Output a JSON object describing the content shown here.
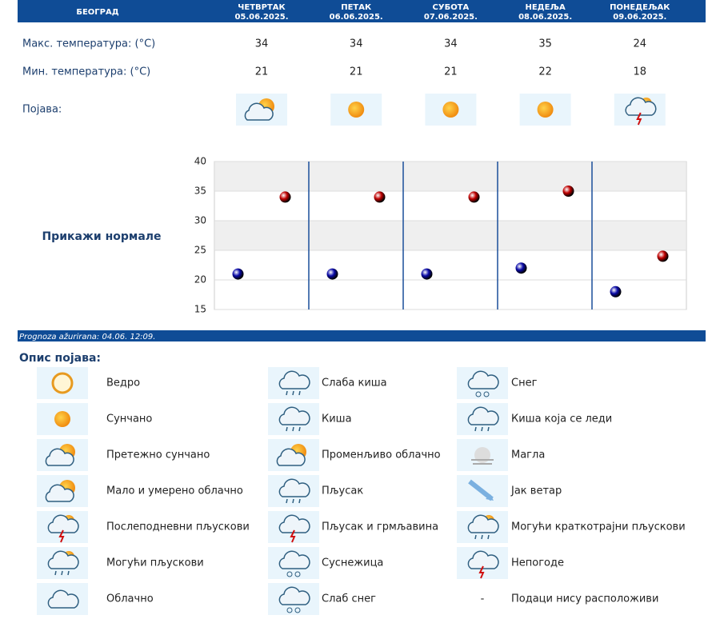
{
  "header": {
    "city": "БЕОГРАД",
    "days": [
      {
        "name": "ЧЕТВРТАК",
        "date": "05.06.2025."
      },
      {
        "name": "ПЕТАК",
        "date": "06.06.2025."
      },
      {
        "name": "СУБОТА",
        "date": "07.06.2025."
      },
      {
        "name": "НЕДЕЉА",
        "date": "08.06.2025."
      },
      {
        "name": "ПОНЕДЕЉАК",
        "date": "09.06.2025."
      }
    ]
  },
  "rows": {
    "max_label": "Макс. температура: (°C)",
    "max": [
      34,
      34,
      34,
      35,
      24
    ],
    "min_label": "Мин. температура: (°C)",
    "min": [
      21,
      21,
      21,
      22,
      18
    ],
    "phenomenon_label": "Појава:"
  },
  "show_normals": "Прикажи нормале",
  "chart_data": {
    "type": "scatter",
    "ylim": [
      15,
      40
    ],
    "yticks": [
      15,
      20,
      25,
      30,
      35,
      40
    ],
    "grid": true,
    "series": [
      {
        "color": "#0a0aa8",
        "values": [
          21,
          21,
          21,
          22,
          18
        ]
      },
      {
        "color": "#c00000",
        "values": [
          34,
          34,
          34,
          35,
          24
        ]
      }
    ]
  },
  "updated": "Prognoza ažurirana:  04.06. 12:09.",
  "legend": {
    "title": "Опис појава:",
    "columns": [
      [
        "Ведро",
        "Сунчано",
        "Претежно сунчано",
        "Мало и умерено облачно",
        "Послеподневни пљускови",
        "Могући пљускови",
        "Облачно"
      ],
      [
        "Слаба киша",
        "Киша",
        "Променљиво облачно",
        "Пљусак",
        "Пљусак и грмљавина",
        "Суснежица",
        "Слаб снег"
      ],
      [
        "Снег",
        "Киша која се леди",
        "Магла",
        "Јак ветар",
        "Могући краткотрајни пљускови",
        "Непогоде",
        "Подаци нису расположиви"
      ]
    ],
    "no_data_symbol": "-"
  }
}
